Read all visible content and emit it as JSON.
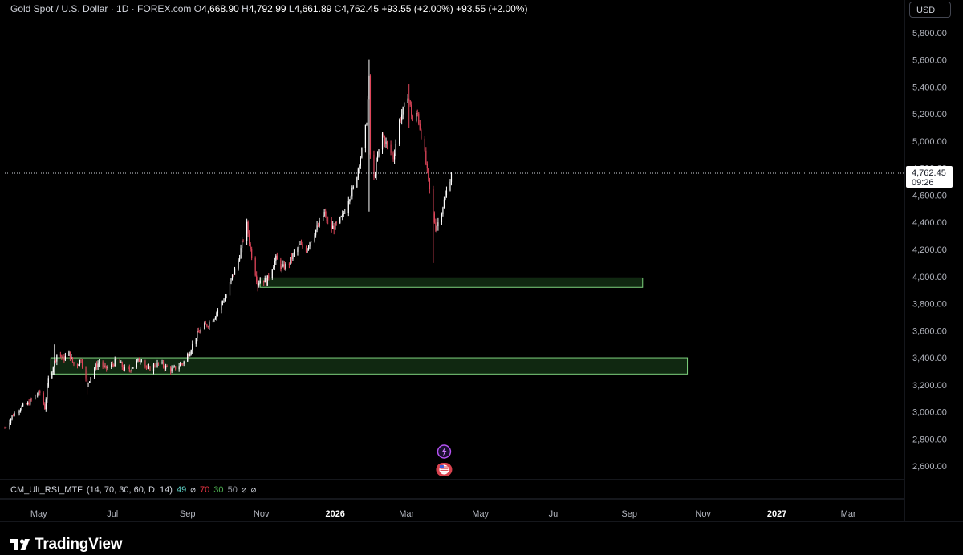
{
  "legend": {
    "symbol": "Gold Spot / U.S. Dollar · 1D · FOREX.com",
    "open_label": "O",
    "open": "4,668.90",
    "high_label": "H",
    "high": "4,792.99",
    "low_label": "L",
    "low": "4,661.89",
    "close_label": "C",
    "close": "4,762.45",
    "change": "+93.55 (+2.00%)",
    "change2": "+93.55 (+2.00%)"
  },
  "currency": "USD",
  "price_label": {
    "price": "4,762.45",
    "countdown": "09:26"
  },
  "indicator": {
    "name": "CM_Ult_RSI_MTF",
    "params": "(14, 70, 30, 60, D, 14)",
    "v1": "49",
    "s1": "⌀",
    "v2": "70",
    "v3": "30",
    "v4": "50",
    "s2": "⌀",
    "s3": "⌀",
    "colors": {
      "v1": "#5fd4c8",
      "v2": "#f23645",
      "v3": "#4caf50",
      "v4": "#9598a1"
    }
  },
  "brand": {
    "name": "TradingView",
    "icon": "tradingview-logo-icon"
  },
  "chart_data": {
    "type": "candlestick",
    "title": "Gold Spot / U.S. Dollar · 1D · FOREX.com",
    "ylim": [
      2500,
      5900
    ],
    "y_ticks": [
      "5,800.00",
      "5,600.00",
      "5,400.00",
      "5,200.00",
      "5,000.00",
      "4,800.00",
      "4,600.00",
      "4,400.00",
      "4,200.00",
      "4,000.00",
      "3,800.00",
      "3,600.00",
      "3,400.00",
      "3,200.00",
      "3,000.00",
      "2,800.00",
      "2,600.00"
    ],
    "y_tick_values": [
      5800,
      5600,
      5400,
      5200,
      5000,
      4800,
      4600,
      4400,
      4200,
      4000,
      3800,
      3600,
      3400,
      3200,
      3000,
      2800,
      2600
    ],
    "x_ticks": [
      "May",
      "Jul",
      "Sep",
      "Nov",
      "2026",
      "Mar",
      "May",
      "Jul",
      "Sep",
      "Nov",
      "2027",
      "Mar"
    ],
    "x_tick_dates": [
      "2025-05-01",
      "2025-07-01",
      "2025-09-01",
      "2025-11-01",
      "2026-01-01",
      "2026-03-01",
      "2026-05-01",
      "2026-07-01",
      "2026-09-01",
      "2026-11-01",
      "2027-01-01",
      "2027-03-01"
    ],
    "x_range": [
      "2025-04-03",
      "2027-04-15"
    ],
    "last_price": 4762.45,
    "path": [
      [
        "2025-04-03",
        2880
      ],
      [
        "2025-04-10",
        2980
      ],
      [
        "2025-04-16",
        3030
      ],
      [
        "2025-04-22",
        3060
      ],
      [
        "2025-04-28",
        3120
      ],
      [
        "2025-05-02",
        3140
      ],
      [
        "2025-05-06",
        3030
      ],
      [
        "2025-05-09",
        3240
      ],
      [
        "2025-05-13",
        3340
      ],
      [
        "2025-05-17",
        3450
      ],
      [
        "2025-05-21",
        3390
      ],
      [
        "2025-05-26",
        3430
      ],
      [
        "2025-05-31",
        3330
      ],
      [
        "2025-06-05",
        3390
      ],
      [
        "2025-06-10",
        3200
      ],
      [
        "2025-06-15",
        3310
      ],
      [
        "2025-06-20",
        3370
      ],
      [
        "2025-06-25",
        3320
      ],
      [
        "2025-06-30",
        3340
      ],
      [
        "2025-07-05",
        3390
      ],
      [
        "2025-07-10",
        3320
      ],
      [
        "2025-07-15",
        3310
      ],
      [
        "2025-07-20",
        3360
      ],
      [
        "2025-07-25",
        3400
      ],
      [
        "2025-07-30",
        3310
      ],
      [
        "2025-08-04",
        3340
      ],
      [
        "2025-08-09",
        3360
      ],
      [
        "2025-08-14",
        3330
      ],
      [
        "2025-08-19",
        3310
      ],
      [
        "2025-08-24",
        3340
      ],
      [
        "2025-08-29",
        3370
      ],
      [
        "2025-09-03",
        3450
      ],
      [
        "2025-09-08",
        3560
      ],
      [
        "2025-09-13",
        3620
      ],
      [
        "2025-09-18",
        3650
      ],
      [
        "2025-09-23",
        3700
      ],
      [
        "2025-09-28",
        3790
      ],
      [
        "2025-10-03",
        3860
      ],
      [
        "2025-10-08",
        4000
      ],
      [
        "2025-10-13",
        4120
      ],
      [
        "2025-10-17",
        4280
      ],
      [
        "2025-10-20",
        4380
      ],
      [
        "2025-10-23",
        4200
      ],
      [
        "2025-10-26",
        4070
      ],
      [
        "2025-10-29",
        3950
      ],
      [
        "2025-11-01",
        3990
      ],
      [
        "2025-11-05",
        3960
      ],
      [
        "2025-11-09",
        4050
      ],
      [
        "2025-11-13",
        4130
      ],
      [
        "2025-11-18",
        4060
      ],
      [
        "2025-11-23",
        4090
      ],
      [
        "2025-11-28",
        4170
      ],
      [
        "2025-12-03",
        4230
      ],
      [
        "2025-12-08",
        4200
      ],
      [
        "2025-12-13",
        4300
      ],
      [
        "2025-12-18",
        4370
      ],
      [
        "2025-12-23",
        4470
      ],
      [
        "2025-12-28",
        4350
      ],
      [
        "2026-01-02",
        4380
      ],
      [
        "2026-01-07",
        4440
      ],
      [
        "2026-01-12",
        4580
      ],
      [
        "2026-01-17",
        4660
      ],
      [
        "2026-01-21",
        4850
      ],
      [
        "2026-01-24",
        4960
      ],
      [
        "2026-01-27",
        5150
      ],
      [
        "2026-01-29",
        5450
      ],
      [
        "2026-01-30",
        4900
      ],
      [
        "2026-02-02",
        4720
      ],
      [
        "2026-02-05",
        4880
      ],
      [
        "2026-02-09",
        5050
      ],
      [
        "2026-02-13",
        4960
      ],
      [
        "2026-02-18",
        4880
      ],
      [
        "2026-02-23",
        5150
      ],
      [
        "2026-02-27",
        5250
      ],
      [
        "2026-03-02",
        5350
      ],
      [
        "2026-03-06",
        5150
      ],
      [
        "2026-03-10",
        5200
      ],
      [
        "2026-03-13",
        5050
      ],
      [
        "2026-03-16",
        4900
      ],
      [
        "2026-03-19",
        4700
      ],
      [
        "2026-03-22",
        4500
      ],
      [
        "2026-03-25",
        4360
      ],
      [
        "2026-03-28",
        4420
      ],
      [
        "2026-04-01",
        4560
      ],
      [
        "2026-04-04",
        4660
      ],
      [
        "2026-04-07",
        4762
      ]
    ],
    "extremes": [
      [
        "2026-01-29",
        5600,
        4480
      ],
      [
        "2026-03-03",
        5420,
        5100
      ],
      [
        "2026-03-23",
        4560,
        4100
      ],
      [
        "2025-10-29",
        4000,
        3890
      ],
      [
        "2025-05-14",
        3500,
        3270
      ],
      [
        "2025-06-10",
        3300,
        3130
      ]
    ],
    "zones": [
      {
        "start": "2025-10-31",
        "end": "2026-09-12",
        "top": 3990,
        "bottom": 3920
      },
      {
        "start": "2025-05-11",
        "end": "2026-10-19",
        "top": 3400,
        "bottom": 3280
      }
    ],
    "events": [
      {
        "date": "2026-04-01",
        "icon": "lightning-icon"
      },
      {
        "date": "2026-04-01",
        "icon": "us-flag-icon"
      }
    ]
  }
}
